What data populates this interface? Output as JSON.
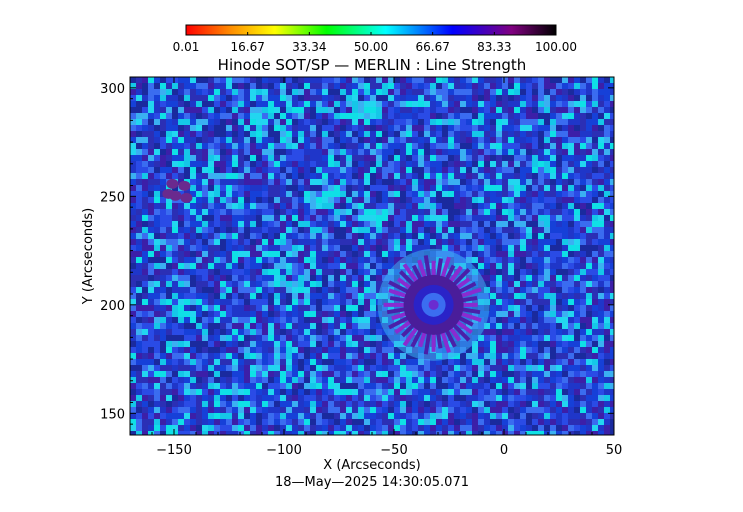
{
  "chart_data": {
    "type": "heatmap",
    "title": "Hinode SOT/SP — MERLIN : Line Strength",
    "xlabel": "X (Arcseconds)",
    "ylabel": "Y (Arcseconds)",
    "timestamp": "18—May—2025 14:30:05.071",
    "xlim": [
      -170,
      50
    ],
    "ylim": [
      140,
      305
    ],
    "x_ticks": [
      {
        "value": -150,
        "label": "−150"
      },
      {
        "value": -100,
        "label": "−100"
      },
      {
        "value": -50,
        "label": "−50"
      },
      {
        "value": 0,
        "label": "0"
      },
      {
        "value": 50,
        "label": "50"
      }
    ],
    "y_ticks": [
      {
        "value": 150,
        "label": "150"
      },
      {
        "value": 200,
        "label": "200"
      },
      {
        "value": 250,
        "label": "250"
      },
      {
        "value": 300,
        "label": "300"
      }
    ],
    "colorbar": {
      "range": [
        0.01,
        100.0
      ],
      "tick_labels": [
        "0.01",
        "16.67",
        "33.34",
        "50.00",
        "66.67",
        "83.33",
        "100.00"
      ],
      "colors": [
        "#ff0000",
        "#ff8c00",
        "#ffff00",
        "#00ff00",
        "#00ffff",
        "#0000ff",
        "#800080",
        "#000000"
      ]
    },
    "features": [
      {
        "name": "sunspot",
        "x": -32,
        "y": 200
      },
      {
        "name": "pores",
        "x": -148,
        "y": 253
      }
    ]
  }
}
